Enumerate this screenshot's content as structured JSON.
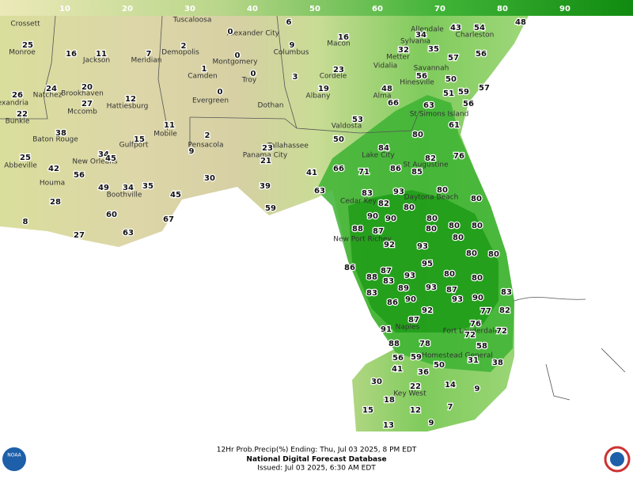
{
  "colorbar": {
    "ticks": [
      10,
      20,
      30,
      40,
      50,
      60,
      70,
      80,
      90
    ]
  },
  "cities": [
    "Crossett",
    "Tuscaloosa",
    "Monroe",
    "Jackson",
    "Meridian",
    "Demopolis",
    "Alexander City",
    "Macon",
    "Columbus",
    "Allendale",
    "Charleston",
    "Sylvania",
    "Montgomery",
    "Camden",
    "Troy",
    "Cordele",
    "Metter",
    "Vidalia",
    "Savannah",
    "Natchez",
    "Brookhaven",
    "Hinesville",
    "Alexandria",
    "Mccomb",
    "Hattiesburg",
    "Evergreen",
    "Dothan",
    "Albany",
    "Alma",
    "Bunkie",
    "St Simons Island",
    "Mobile",
    "Valdosta",
    "Baton Rouge",
    "Gulfport",
    "Pensacola",
    "Tallahassee",
    "Panama City",
    "Lake City",
    "St Augustine",
    "Abbeville",
    "New Orleans",
    "Houma",
    "Boothville",
    "Daytona Beach",
    "Cedar Key",
    "New Port Richey",
    "Naples",
    "Fort Lauderdale",
    "Homestead General",
    "Key West"
  ],
  "values": [
    25,
    16,
    11,
    7,
    2,
    0,
    6,
    9,
    16,
    34,
    43,
    54,
    48,
    0,
    1,
    0,
    23,
    32,
    35,
    57,
    56,
    24,
    20,
    27,
    12,
    0,
    3,
    19,
    48,
    66,
    56,
    50,
    51,
    59,
    57,
    26,
    22,
    63,
    56,
    53,
    61,
    11,
    2,
    38,
    15,
    50,
    84,
    80,
    34,
    9,
    23,
    82,
    76,
    25,
    45,
    21,
    42,
    56,
    41,
    66,
    71,
    86,
    85,
    49,
    34,
    35,
    45,
    30,
    39,
    63,
    83,
    93,
    80,
    28,
    82,
    80,
    80,
    59,
    90,
    90,
    80,
    60,
    67,
    8,
    87,
    88,
    80,
    80,
    80,
    63,
    27,
    92,
    93,
    80,
    80,
    95,
    80,
    86,
    88,
    87,
    83,
    93,
    80,
    80,
    83,
    89,
    93,
    87,
    86,
    90,
    93,
    90,
    83,
    92,
    77,
    82,
    87,
    91,
    76,
    72,
    88,
    78,
    72,
    58,
    56,
    59,
    31,
    38,
    41,
    36,
    50,
    30,
    22,
    14,
    9,
    18,
    15,
    12,
    7,
    13,
    9
  ],
  "footer": {
    "line1": "12Hr Prob.Precip(%) Ending: Thu, Jul 03 2025, 8 PM EDT",
    "line2": "National Digital Forecast Database",
    "line3": "Issued: Jul 03 2025, 6:30 AM EDT"
  },
  "logos": {
    "left": "NOAA"
  }
}
